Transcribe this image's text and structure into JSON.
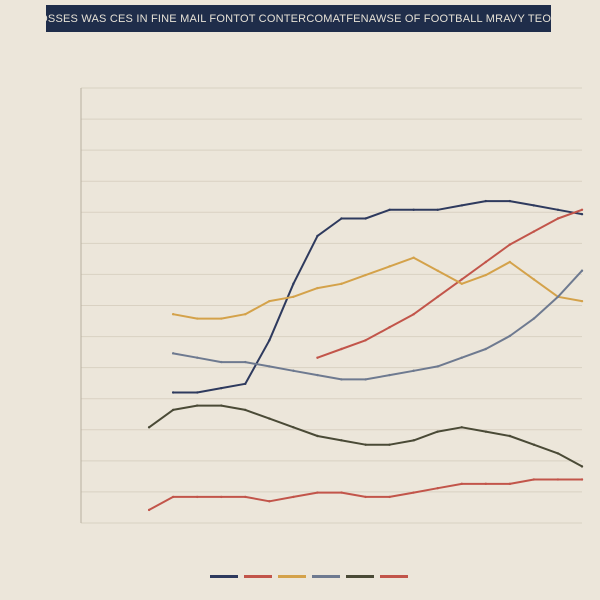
{
  "chart_data": {
    "type": "line",
    "title": "HISTORICAL LOSSES WAS CES IN FINE MAIL FONTOT CONTERCOMATFENAWSE OF FOOTBALL MRAVY TEOTBALL CEUTRY",
    "xlabel": "",
    "ylabel": "",
    "grid": "horizontal",
    "legend": "bottom",
    "colors": {
      "background": "#ece6da",
      "title_background": "#1f2d4a",
      "title_text": "#e6e1d6",
      "navy": "#2e3a5e",
      "red": "#c2554a",
      "gold": "#d4a24a",
      "slate": "#6e7a90",
      "olive": "#4a4a36"
    },
    "x": [
      0,
      1,
      2,
      3,
      4,
      5,
      6,
      7,
      8,
      9,
      10,
      11,
      12,
      13,
      14,
      15,
      16,
      17,
      18,
      19,
      20
    ],
    "ylim": [
      0,
      100
    ],
    "series": [
      {
        "color": "#2e3a5e",
        "values": [
          null,
          null,
          null,
          30,
          30,
          31,
          32,
          42,
          55,
          66,
          70,
          70,
          72,
          72,
          72,
          73,
          74,
          74,
          73,
          72,
          71
        ]
      },
      {
        "color": "#c2554a",
        "values": [
          null,
          null,
          null,
          null,
          null,
          null,
          null,
          null,
          null,
          38,
          40,
          42,
          45,
          48,
          52,
          56,
          60,
          64,
          67,
          70,
          72
        ]
      },
      {
        "color": "#d4a24a",
        "values": [
          null,
          null,
          null,
          48,
          47,
          47,
          48,
          51,
          52,
          54,
          55,
          57,
          59,
          61,
          58,
          55,
          57,
          60,
          56,
          52,
          51
        ]
      },
      {
        "color": "#6e7a90",
        "values": [
          null,
          null,
          null,
          39,
          38,
          37,
          37,
          36,
          35,
          34,
          33,
          33,
          34,
          35,
          36,
          38,
          40,
          43,
          47,
          52,
          58
        ]
      },
      {
        "color": "#4a4a36",
        "values": [
          null,
          null,
          22,
          26,
          27,
          27,
          26,
          24,
          22,
          20,
          19,
          18,
          18,
          19,
          21,
          22,
          21,
          20,
          18,
          16,
          13
        ]
      },
      {
        "color": "#c2554a",
        "values": [
          null,
          null,
          3,
          6,
          6,
          6,
          6,
          5,
          6,
          7,
          7,
          6,
          6,
          7,
          8,
          9,
          9,
          9,
          10,
          10,
          10
        ]
      }
    ]
  }
}
